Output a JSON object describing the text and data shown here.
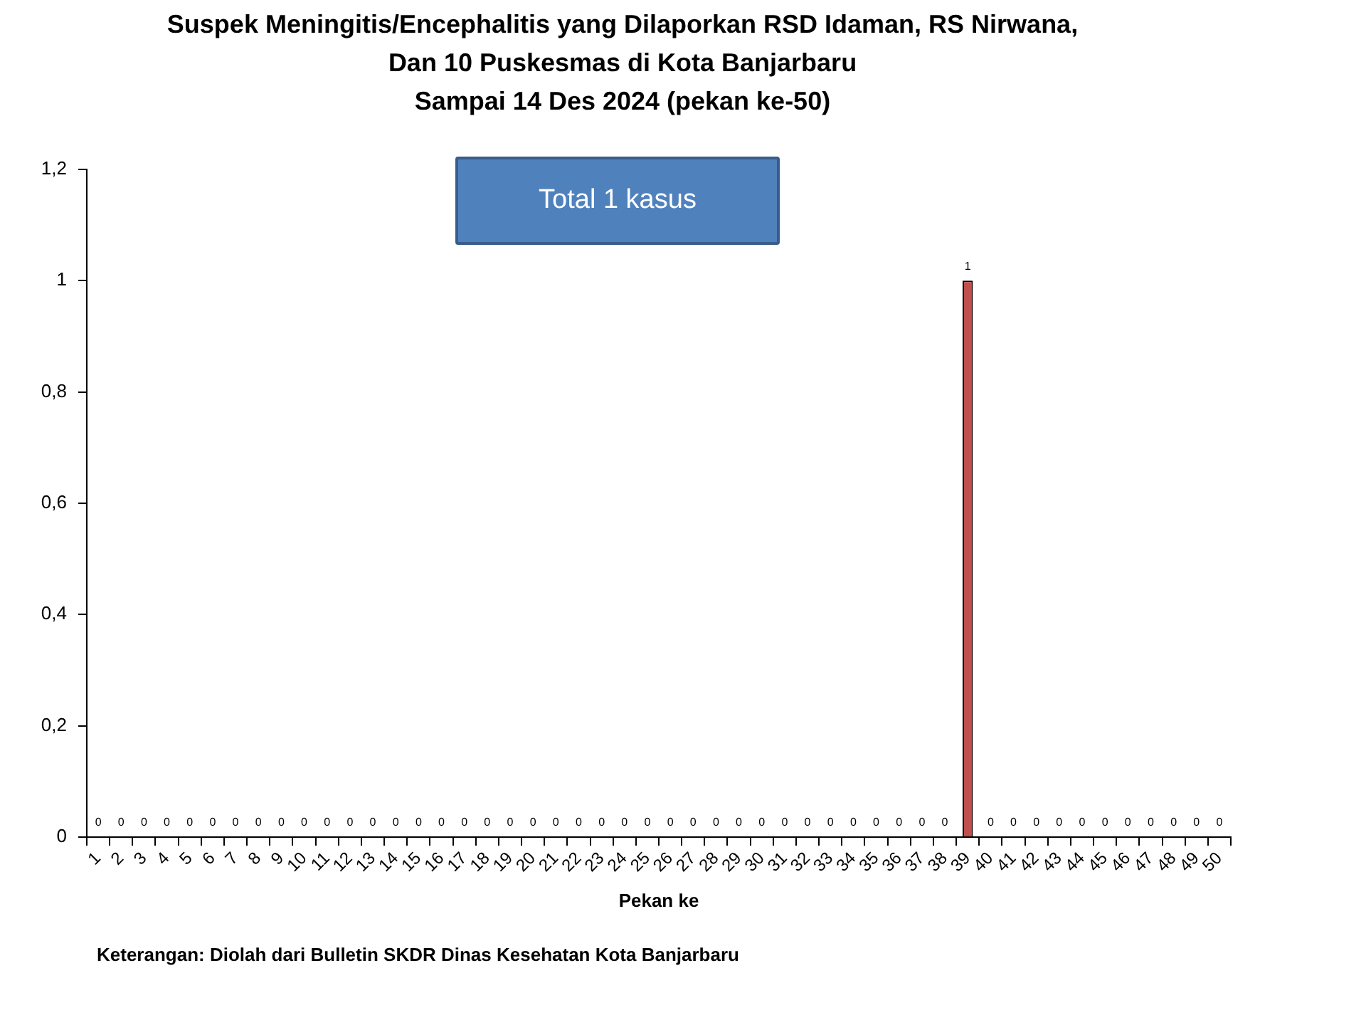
{
  "chart_data": {
    "type": "bar",
    "title": "Suspek Meningitis/Encephalitis yang Dilaporkan RSD Idaman, RS Nirwana,\nDan 10 Puskesmas di Kota Banjarbaru\nSampai 14 Des 2024 (pekan ke-50)",
    "xlabel": "Pekan ke",
    "categories": [
      "1",
      "2",
      "3",
      "4",
      "5",
      "6",
      "7",
      "8",
      "9",
      "10",
      "11",
      "12",
      "13",
      "14",
      "15",
      "16",
      "17",
      "18",
      "19",
      "20",
      "21",
      "22",
      "23",
      "24",
      "25",
      "26",
      "27",
      "28",
      "29",
      "30",
      "31",
      "32",
      "33",
      "34",
      "35",
      "36",
      "37",
      "38",
      "39",
      "40",
      "41",
      "42",
      "43",
      "44",
      "45",
      "46",
      "47",
      "48",
      "49",
      "50"
    ],
    "values": [
      0,
      0,
      0,
      0,
      0,
      0,
      0,
      0,
      0,
      0,
      0,
      0,
      0,
      0,
      0,
      0,
      0,
      0,
      0,
      0,
      0,
      0,
      0,
      0,
      0,
      0,
      0,
      0,
      0,
      0,
      0,
      0,
      0,
      0,
      0,
      0,
      0,
      0,
      1,
      0,
      0,
      0,
      0,
      0,
      0,
      0,
      0,
      0,
      0,
      0
    ],
    "color": "#c0504d",
    "ylim": [
      0,
      1.2
    ],
    "yticks": [
      0,
      {
        "value": 0.2,
        "label": "0,2"
      },
      {
        "value": 0.4,
        "label": "0,4"
      },
      {
        "value": 0.6,
        "label": "0,6"
      },
      {
        "value": 0.8,
        "label": "0,8"
      },
      1,
      {
        "value": 1.2,
        "label": "1,2"
      }
    ],
    "data_labels": true,
    "legend": false,
    "annotations": [
      "Total 1 kasus",
      "Keterangan: Diolah dari Bulletin SKDR Dinas Kesehatan Kota Banjarbaru"
    ]
  }
}
